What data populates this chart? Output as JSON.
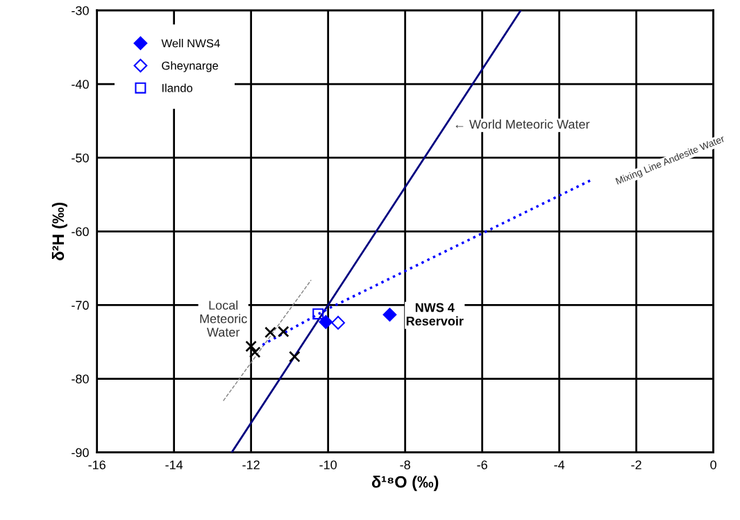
{
  "chart_data": {
    "type": "scatter",
    "xlabel": "δ¹⁸O (‰)",
    "ylabel": "δ²H (‰)",
    "xlim": [
      -16,
      0
    ],
    "xticks": [
      -16,
      -14,
      -12,
      -10,
      -8,
      -6,
      -4,
      -2,
      0
    ],
    "ylim": [
      -90,
      -30
    ],
    "yticks": [
      -90,
      -80,
      -70,
      -60,
      -50,
      -40,
      -30
    ],
    "grid": true,
    "legend": "top left",
    "series": [
      {
        "name": "Well NWS4",
        "marker": "diamond",
        "color": "#0000ff",
        "x": [
          -8.4,
          -10.06
        ],
        "values": [
          -71.3,
          -72.3
        ]
      },
      {
        "name": "Gheynarge",
        "marker": "diamond",
        "color": "#0000ff",
        "x": [
          -9.74
        ],
        "values": [
          -72.4
        ]
      },
      {
        "name": "Ilando",
        "marker": "square",
        "color": "#0000ff",
        "x": [
          -10.26
        ],
        "values": [
          -71.2
        ]
      },
      {
        "marker": "cross",
        "color": "#000000",
        "x": [
          -11.5,
          -11.16,
          -12.0,
          -11.9,
          -10.87
        ],
        "values": [
          -73.7,
          -73.6,
          -75.6,
          -76.4,
          -77.0
        ]
      },
      {
        "type": "line",
        "line_style": "solid",
        "color": "#000080",
        "x": [
          -12.5,
          -5.0
        ],
        "values": [
          -90,
          -30
        ]
      },
      {
        "type": "line",
        "line_style": "dashed",
        "color": "#808080",
        "x": [
          -12.72,
          -10.44
        ],
        "values": [
          -83.0,
          -66.6
        ]
      },
      {
        "type": "line",
        "line_style": "dotted",
        "color": "#0000ff",
        "x": [
          -11.7,
          -10.0,
          -3.2
        ],
        "values": [
          -75.4,
          -70.5,
          -53.1
        ]
      }
    ],
    "annotations": [
      "Local\nMeteoric\nWater",
      "NWS 4\nReservoir",
      "← World Meteoric Water",
      "Mixing Line Andesite Water"
    ]
  }
}
